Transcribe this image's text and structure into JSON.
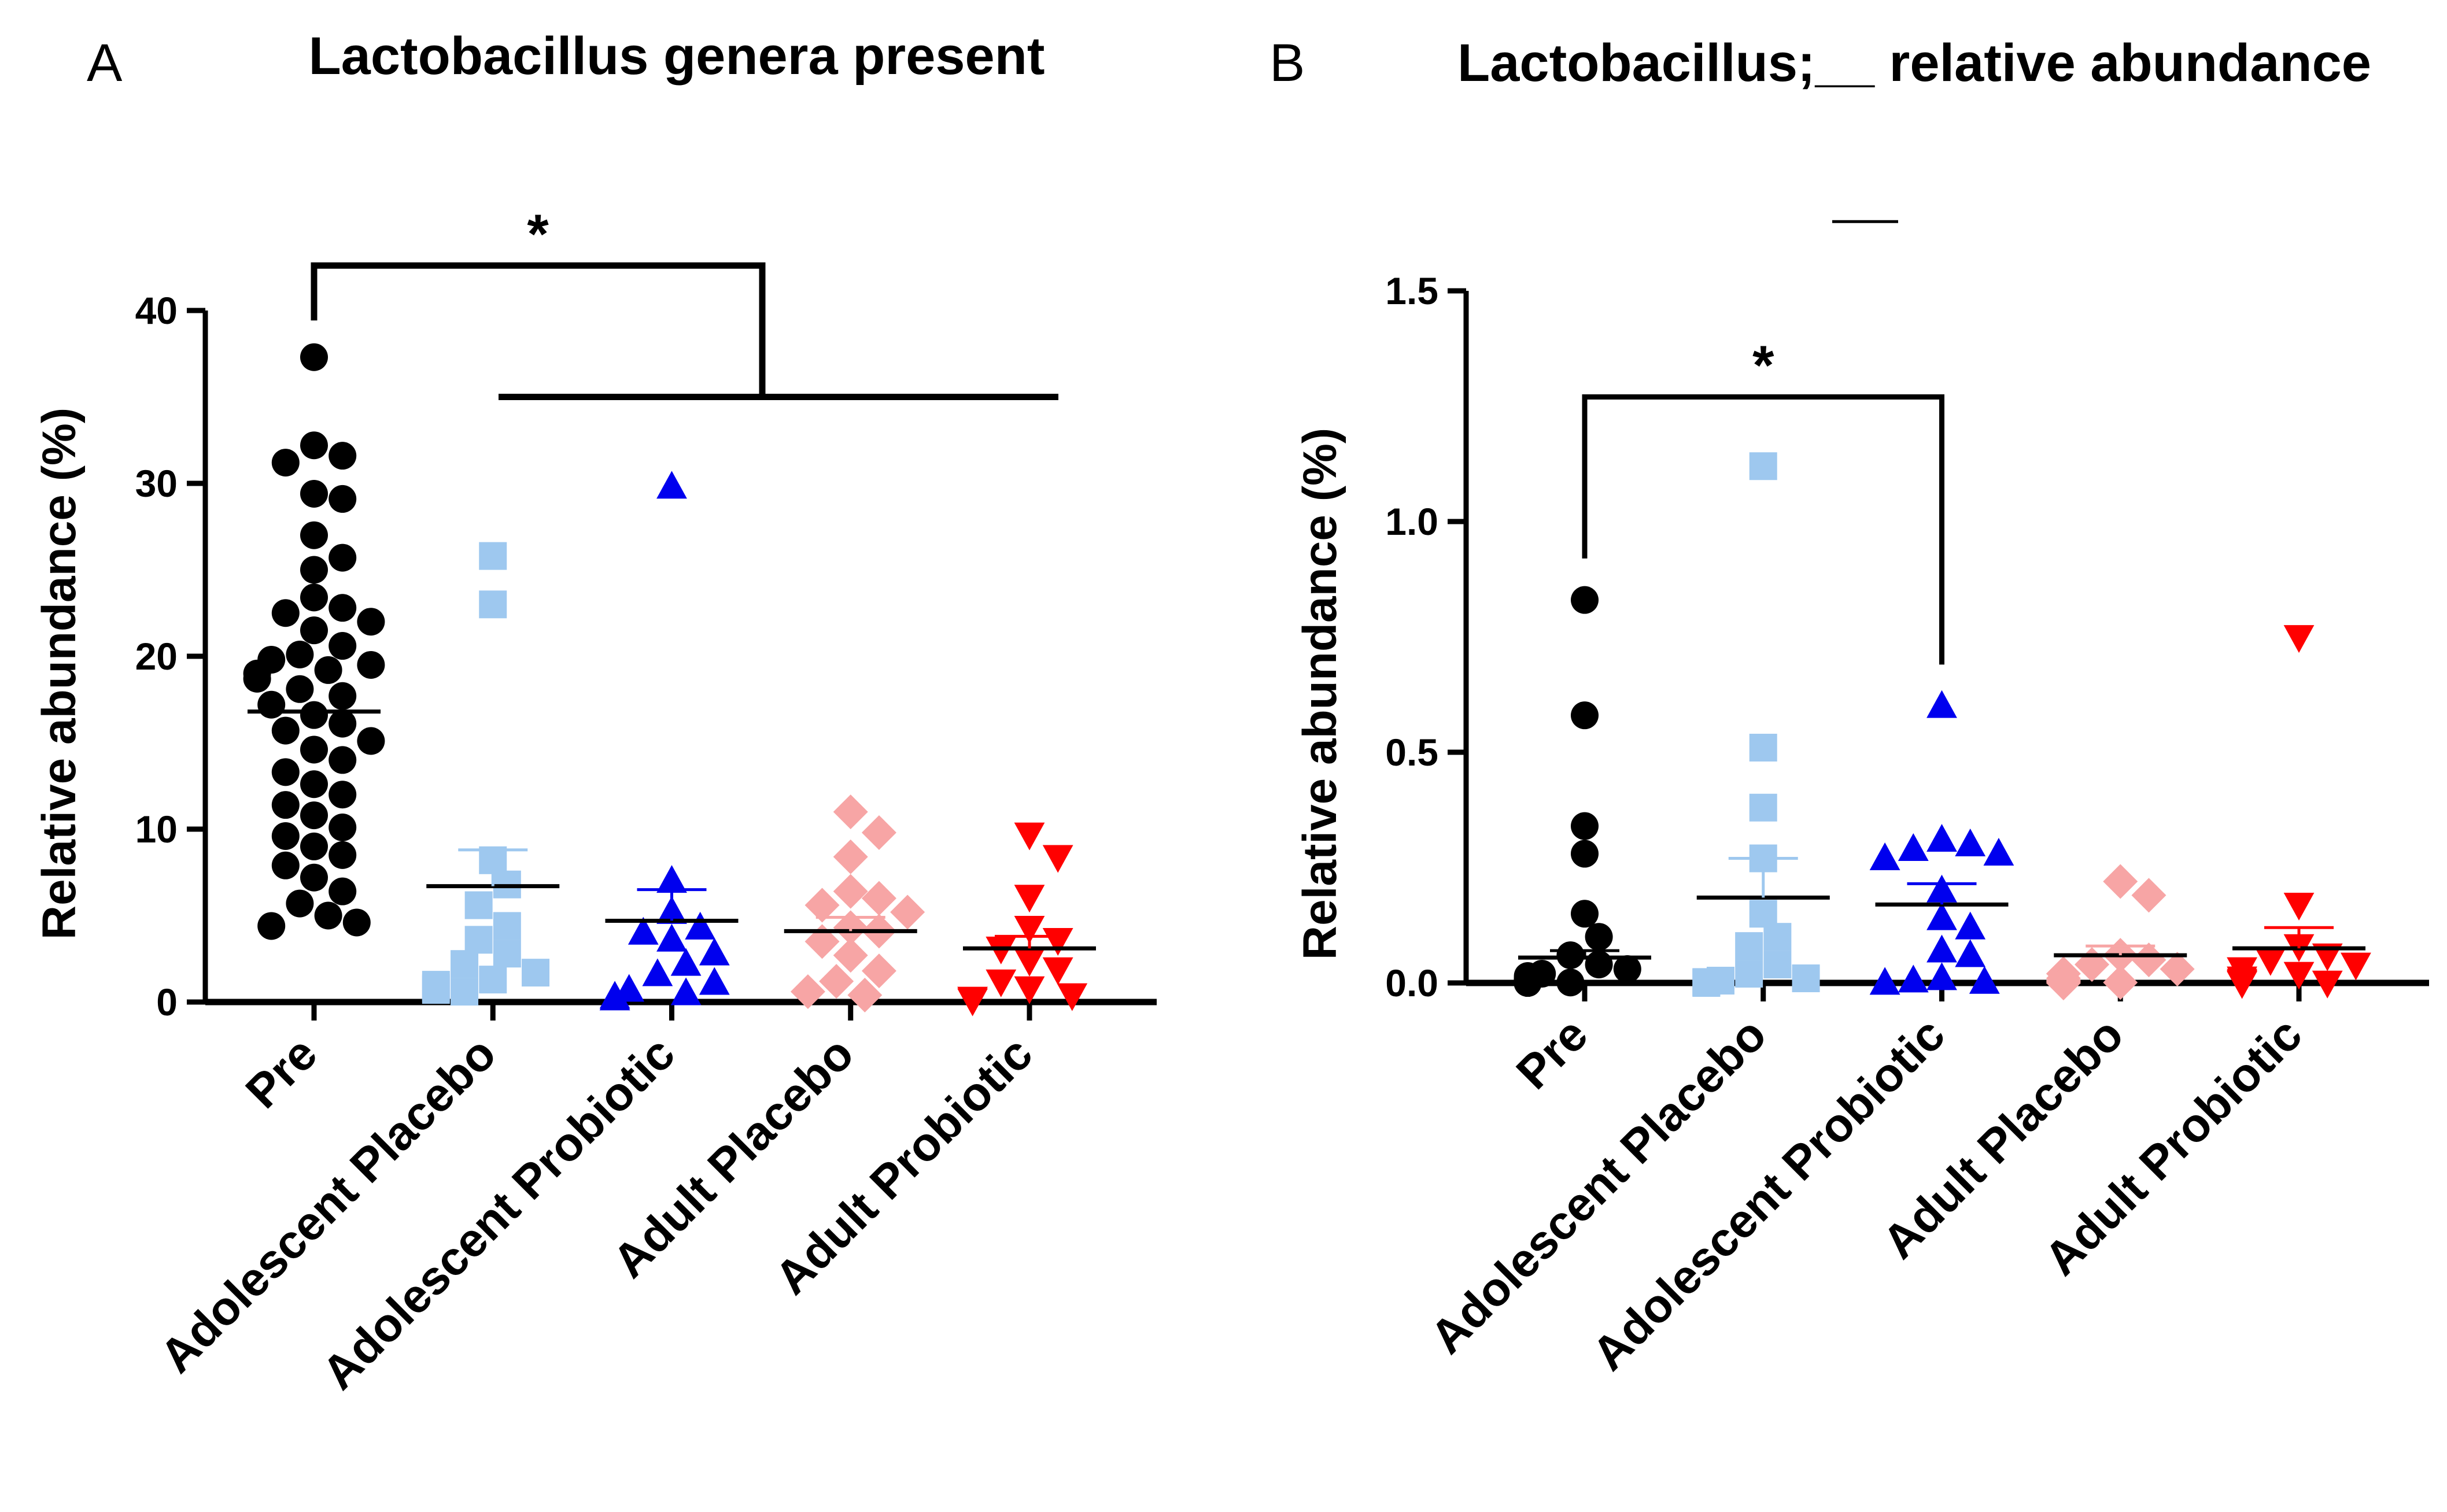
{
  "chart_data": [
    {
      "panel": "A",
      "type": "scatter",
      "title": "Lactobacillus genera present",
      "xlabel": "",
      "ylabel": "Relative abundance  (%)",
      "ylim": [
        0,
        40
      ],
      "yticks": [
        "0",
        "10",
        "20",
        "30",
        "40"
      ],
      "categories": [
        "Pre",
        "Adolescent Placebo",
        "Adolescent Probiotic",
        "Adult Placebo",
        "Adult Probiotic"
      ],
      "series": [
        {
          "name": "Pre",
          "marker": "circle",
          "color": "#000000",
          "mean": 16.8,
          "sem": 0.0,
          "values": [
            37.3,
            32.2,
            31.6,
            31.2,
            29.4,
            29.1,
            27.0,
            25.7,
            25.0,
            23.4,
            22.8,
            22.5,
            22.0,
            21.5,
            20.6,
            20.1,
            19.8,
            19.5,
            19.2,
            19.0,
            18.7,
            18.1,
            17.7,
            17.2,
            16.6,
            16.1,
            15.7,
            15.1,
            14.6,
            14.0,
            13.3,
            12.6,
            12.0,
            11.4,
            10.8,
            10.1,
            9.6,
            9.0,
            8.5,
            7.9,
            7.2,
            6.4,
            5.7,
            5.0,
            4.6,
            4.4
          ]
        },
        {
          "name": "Adolescent Placebo",
          "marker": "square",
          "color": "#9ec8ef",
          "mean": 6.7,
          "sem": 2.1,
          "values": [
            25.8,
            23.0,
            8.2,
            6.8,
            5.6,
            4.4,
            3.6,
            2.8,
            2.2,
            1.7,
            1.3,
            1.0,
            0.8,
            0.7,
            0.6
          ]
        },
        {
          "name": "Adolescent Probiotic",
          "marker": "triangle-up",
          "color": "#0000ee",
          "mean": 4.7,
          "sem": 1.8,
          "values": [
            29.8,
            7.0,
            5.2,
            4.3,
            4.0,
            3.6,
            2.8,
            2.2,
            1.6,
            1.1,
            0.7,
            0.5,
            0.3,
            0.2
          ]
        },
        {
          "name": "Adult Placebo",
          "marker": "diamond",
          "color": "#f7a5a5",
          "mean": 4.1,
          "sem": 0.8,
          "values": [
            11.0,
            9.8,
            8.4,
            6.4,
            6.0,
            5.6,
            5.2,
            4.3,
            4.1,
            3.5,
            2.7,
            1.8,
            1.2,
            0.6,
            0.4
          ]
        },
        {
          "name": "Adult Probiotic",
          "marker": "triangle-down",
          "color": "#ff0000",
          "mean": 3.1,
          "sem": 0.7,
          "values": [
            9.7,
            8.4,
            6.1,
            4.3,
            3.6,
            3.1,
            2.4,
            1.9,
            1.2,
            0.8,
            0.4,
            0.2,
            0.1
          ]
        }
      ],
      "significance": [
        {
          "label": "*",
          "from": "Pre",
          "to": [
            "Adolescent Placebo",
            "Adolescent Probiotic",
            "Adult Placebo",
            "Adult Probiotic"
          ],
          "bar_y": 42.6,
          "drop_y": 35.0
        }
      ]
    },
    {
      "panel": "B",
      "type": "scatter",
      "title": "Lactobacillus;__ relative abundance",
      "xlabel": "",
      "ylabel": "Relative abundance  (%)",
      "ylim": [
        0,
        1.5
      ],
      "yticks": [
        "0.0",
        "0.5",
        "1.0",
        "1.5"
      ],
      "categories": [
        "Pre",
        "Adolescent Placebo",
        "Adolescent Probiotic",
        "Adult Placebo",
        "Adult Probiotic"
      ],
      "series": [
        {
          "name": "Pre",
          "marker": "circle",
          "color": "#000000",
          "mean": 0.055,
          "sem": 0.015,
          "values": [
            0.83,
            0.58,
            0.34,
            0.28,
            0.15,
            0.1,
            0.06,
            0.04,
            0.03,
            0.02,
            0.015,
            0.01,
            0.008,
            0.006,
            0.005,
            0.004,
            0.003,
            0.002,
            0.002,
            0.001,
            0.001,
            0.0,
            0.0,
            0.0,
            0.0,
            0.0,
            0.0,
            0.0
          ]
        },
        {
          "name": "Adolescent Placebo",
          "marker": "square",
          "color": "#9ec8ef",
          "mean": 0.185,
          "sem": 0.085,
          "values": [
            1.12,
            0.51,
            0.38,
            0.27,
            0.15,
            0.1,
            0.08,
            0.04,
            0.02,
            0.01,
            0.005,
            0.002,
            0.001,
            0.0
          ]
        },
        {
          "name": "Adolescent Probiotic",
          "marker": "triangle-up",
          "color": "#0000ee",
          "mean": 0.17,
          "sem": 0.045,
          "values": [
            0.6,
            0.31,
            0.3,
            0.29,
            0.28,
            0.27,
            0.2,
            0.14,
            0.12,
            0.07,
            0.06,
            0.01,
            0.005,
            0.002,
            0.0
          ]
        },
        {
          "name": "Adult Placebo",
          "marker": "diamond",
          "color": "#f7a5a5",
          "mean": 0.06,
          "sem": 0.02,
          "values": [
            0.22,
            0.19,
            0.06,
            0.05,
            0.04,
            0.03,
            0.02,
            0.01,
            0.005,
            0.003,
            0.001,
            0.0,
            0.0
          ]
        },
        {
          "name": "Adult Probiotic",
          "marker": "triangle-down",
          "color": "#ff0000",
          "mean": 0.075,
          "sem": 0.045,
          "values": [
            0.75,
            0.17,
            0.08,
            0.06,
            0.05,
            0.04,
            0.03,
            0.02,
            0.01,
            0.005,
            0.002,
            0.001,
            0.0
          ]
        }
      ],
      "significance": [
        {
          "label": "*",
          "from": "Pre",
          "to": [
            "Adolescent Probiotic"
          ],
          "bar_y": 1.27,
          "drop_y_left": 0.92,
          "drop_y_right": 0.69
        }
      ],
      "extra_marks": [
        {
          "kind": "line",
          "y": 1.65
        }
      ]
    }
  ]
}
